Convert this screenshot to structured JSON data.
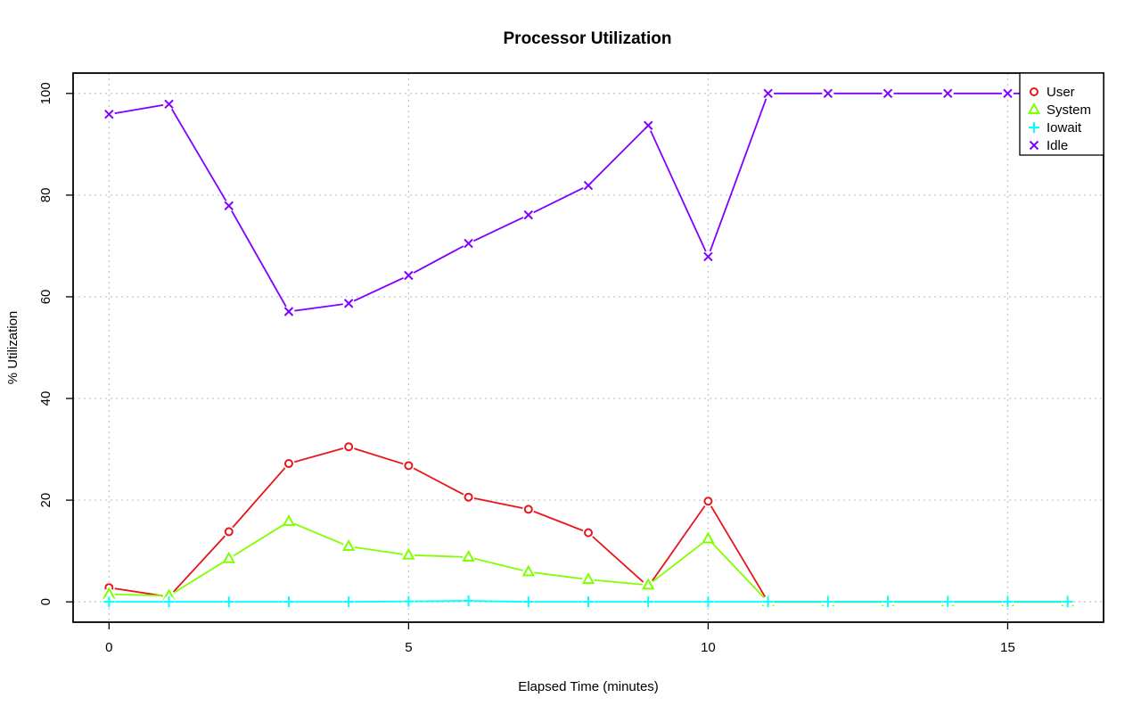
{
  "chart_data": {
    "type": "line",
    "title": "Processor Utilization",
    "xlabel": "Elapsed Time (minutes)",
    "ylabel": "% Utilization",
    "xlim": [
      -0.6,
      16.6
    ],
    "ylim": [
      -4,
      104
    ],
    "xticks": [
      0,
      5,
      10,
      15
    ],
    "yticks": [
      0,
      20,
      40,
      60,
      80,
      100
    ],
    "grid": true,
    "legend_position": "top-right",
    "x": [
      0,
      1,
      2,
      3,
      4,
      5,
      6,
      7,
      8,
      9,
      10,
      11,
      12,
      13,
      14,
      15,
      16
    ],
    "series": [
      {
        "name": "User",
        "color": "#e8161b",
        "marker": "circle",
        "values": [
          2.8,
          1.0,
          13.8,
          27.2,
          30.5,
          26.8,
          20.6,
          18.2,
          13.6,
          3.0,
          19.8,
          0,
          0,
          0,
          0,
          0,
          0
        ]
      },
      {
        "name": "System",
        "color": "#80ff00",
        "marker": "triangle",
        "values": [
          1.5,
          1.2,
          8.5,
          15.8,
          10.9,
          9.2,
          8.8,
          5.9,
          4.4,
          3.3,
          12.4,
          0,
          0,
          0,
          0,
          0,
          0
        ]
      },
      {
        "name": "Iowait",
        "color": "#00ffff",
        "marker": "plus",
        "values": [
          0,
          0,
          0,
          0,
          0,
          0.1,
          0.2,
          0,
          0,
          0,
          0,
          0,
          0,
          0,
          0,
          0,
          0
        ]
      },
      {
        "name": "Idle",
        "color": "#8000ff",
        "marker": "cross",
        "values": [
          95.9,
          97.9,
          77.9,
          57.1,
          58.7,
          64.2,
          70.5,
          76.1,
          81.9,
          93.7,
          67.9,
          100,
          100,
          100,
          100,
          100,
          100
        ]
      }
    ]
  }
}
